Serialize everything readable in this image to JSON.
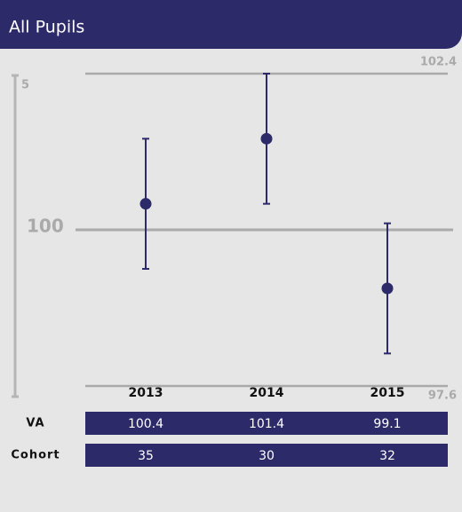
{
  "chart_data": {
    "type": "errorbar",
    "title": "All Pupils",
    "y_axis_label": "5",
    "categories": [
      "2013",
      "2014",
      "2015"
    ],
    "values": [
      100.4,
      101.4,
      99.1
    ],
    "errors": [
      1.0,
      1.0,
      1.0
    ],
    "color": "#2d2a6a",
    "ylim": [
      97.6,
      102.4
    ],
    "yticks": [
      97.6,
      100,
      102.4
    ],
    "grid": true,
    "table_rows": [
      "VA",
      "Cohort"
    ],
    "cohort": [
      35,
      30,
      32
    ]
  }
}
